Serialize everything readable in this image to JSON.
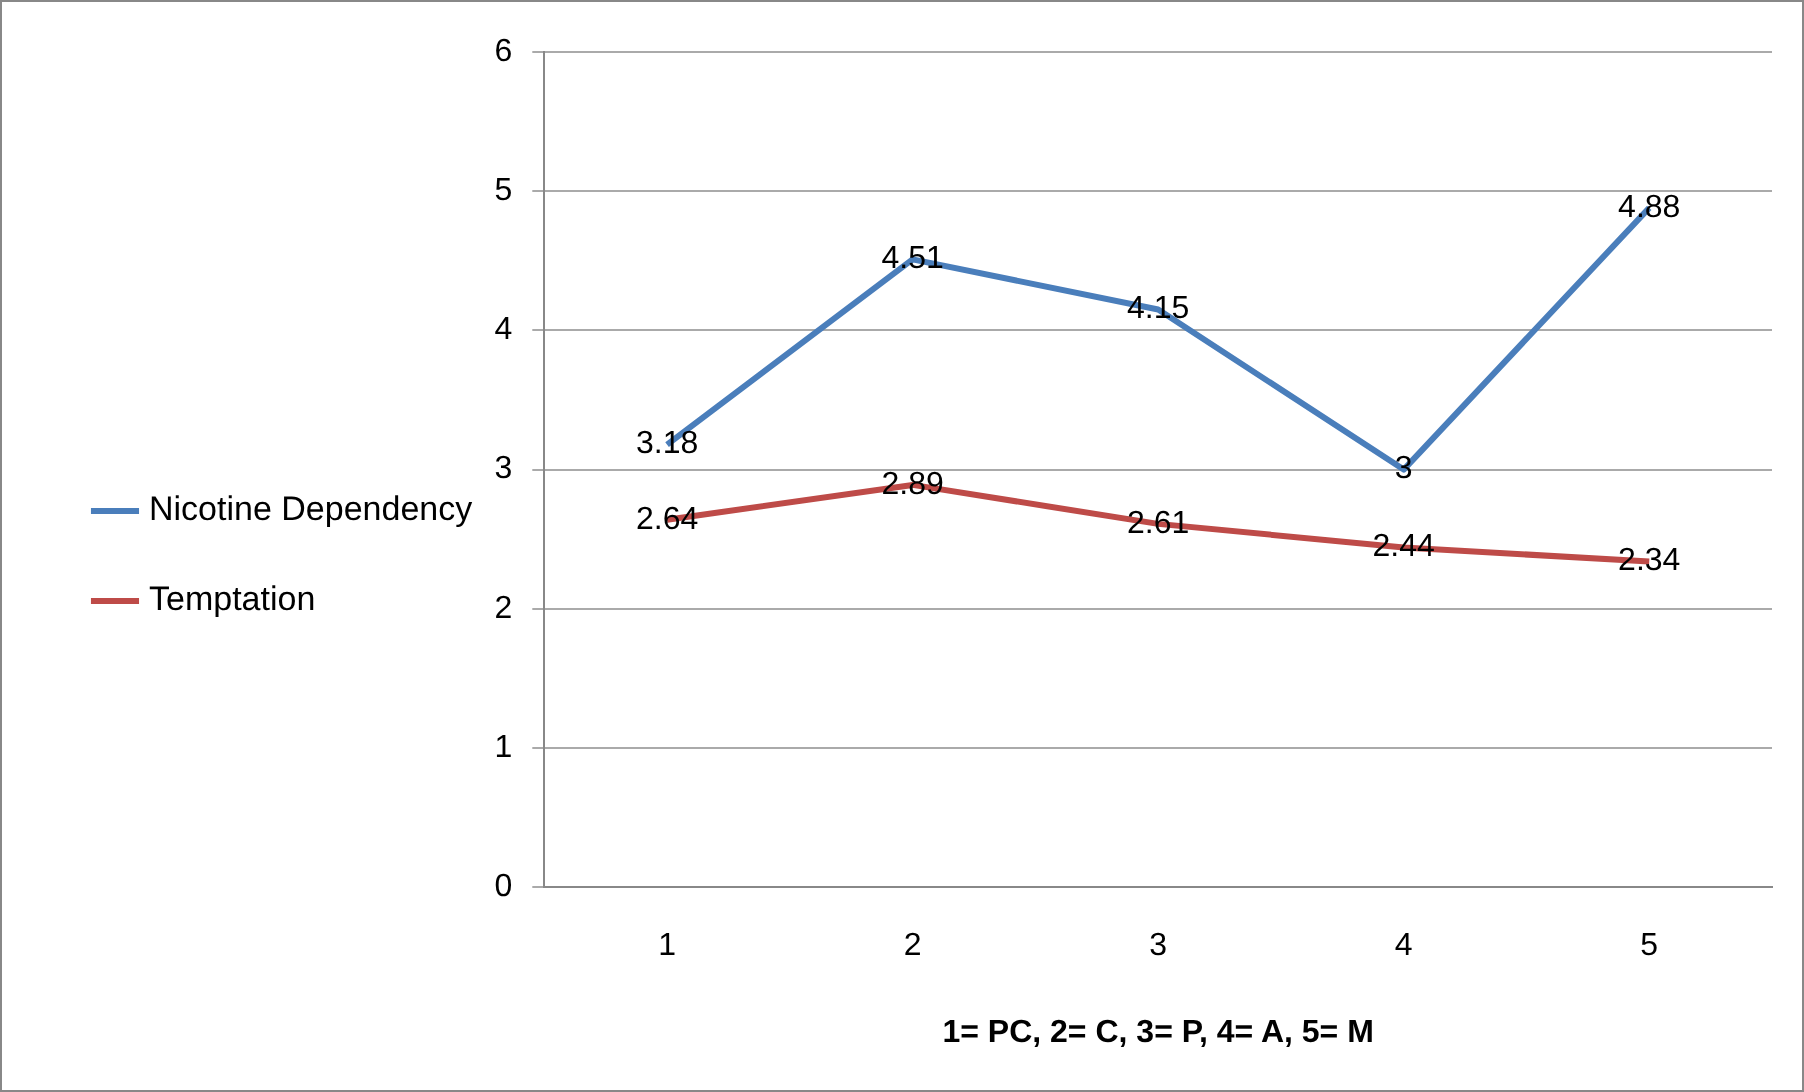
{
  "chart_data": {
    "type": "line",
    "xlabel": "1= PC, 2= C, 3= P, 4= A, 5= M",
    "categories": [
      "1",
      "2",
      "3",
      "4",
      "5"
    ],
    "series": [
      {
        "name": "Nicotine Dependency",
        "color": "#4a7ebb",
        "values": [
          3.18,
          4.51,
          4.15,
          3,
          4.88
        ]
      },
      {
        "name": "Temptation",
        "color": "#be4b48",
        "values": [
          2.64,
          2.89,
          2.61,
          2.44,
          2.34
        ]
      }
    ],
    "ylim": [
      0,
      6
    ],
    "yticks": [
      0,
      1,
      2,
      3,
      4,
      5,
      6
    ],
    "grid": "y",
    "legend": "left",
    "data_labels": true,
    "marker": "none",
    "line_style": "solid"
  }
}
